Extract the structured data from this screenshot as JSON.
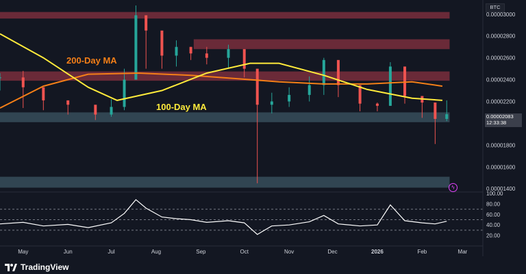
{
  "symbol": "BTC",
  "current_price": "0.00002083",
  "countdown": "12:33:38",
  "branding": "TradingView",
  "colors": {
    "background": "#131722",
    "candle_up": "#26a69a",
    "candle_down": "#ef5350",
    "ma200": "#f57f17",
    "ma100": "#ffeb3b",
    "support_zone": "#4a6b7a",
    "resistance_zone": "#b23b4a",
    "rsi_line": "#ffffff"
  },
  "chart_data": [
    {
      "type": "candlestick",
      "title": "",
      "x_axis_labels": [
        "May",
        "Jun",
        "Jul",
        "Aug",
        "Sep",
        "Oct",
        "Nov",
        "Dec",
        "2026",
        "Feb",
        "Mar"
      ],
      "y_axis_labels": [
        "0.00003000",
        "0.00002800",
        "0.00002600",
        "0.00002400",
        "0.00002200",
        "0.00002000",
        "0.00001800",
        "0.00001600",
        "0.00001400"
      ],
      "ylim": [
        1.37e-05,
        3.13e-05
      ],
      "grid": false,
      "annotations": [
        {
          "text": "200-Day MA",
          "color": "#f57f17"
        },
        {
          "text": "100-Day MA",
          "color": "#ffeb3b"
        }
      ],
      "zones": [
        {
          "kind": "support",
          "low": 2.01e-05,
          "high": 2.1e-05,
          "start": "2025-04-15",
          "end": "2026-02-20"
        },
        {
          "kind": "support",
          "low": 1.41e-05,
          "high": 1.51e-05,
          "start": "2025-04-15",
          "end": "2026-02-20"
        },
        {
          "kind": "resistance",
          "low": 2.39e-05,
          "high": 2.475e-05,
          "start": "2025-04-15",
          "end": "2026-02-20"
        },
        {
          "kind": "resistance",
          "low": 2.96e-05,
          "high": 3.02e-05,
          "start": "2025-04-15",
          "end": "2026-02-20"
        },
        {
          "kind": "resistance",
          "low": 2.68e-05,
          "high": 2.77e-05,
          "start": "2025-08-27",
          "end": "2026-02-20"
        }
      ],
      "series": [
        {
          "name": "200-Day MA",
          "type": "line",
          "x": [
            "2025-04-15",
            "2025-05-15",
            "2025-06-15",
            "2025-07-20",
            "2025-08-25",
            "2025-09-25",
            "2025-10-25",
            "2025-11-25",
            "2025-12-25",
            "2026-01-25",
            "2026-02-15"
          ],
          "values": [
            2.14e-05,
            2.34e-05,
            2.45e-05,
            2.46e-05,
            2.44e-05,
            2.41e-05,
            2.38e-05,
            2.36e-05,
            2.36e-05,
            2.38e-05,
            2.34e-05
          ]
        },
        {
          "name": "100-Day MA",
          "type": "line",
          "x": [
            "2025-04-15",
            "2025-05-15",
            "2025-06-15",
            "2025-07-05",
            "2025-08-05",
            "2025-09-05",
            "2025-10-05",
            "2025-10-25",
            "2025-11-25",
            "2025-12-25",
            "2026-01-25",
            "2026-02-15"
          ],
          "values": [
            2.82e-05,
            2.6e-05,
            2.33e-05,
            2.21e-05,
            2.3e-05,
            2.46e-05,
            2.55e-05,
            2.55e-05,
            2.44e-05,
            2.31e-05,
            2.23e-05,
            2.21e-05
          ]
        },
        {
          "name": "BTC",
          "type": "candles",
          "x": [
            "2025-04-15",
            "2025-05-01",
            "2025-05-15",
            "2025-06-01",
            "2025-06-20",
            "2025-07-01",
            "2025-07-10",
            "2025-07-18",
            "2025-07-25",
            "2025-08-05",
            "2025-08-15",
            "2025-08-25",
            "2025-09-05",
            "2025-09-20",
            "2025-10-01",
            "2025-10-10",
            "2025-10-20",
            "2025-11-01",
            "2025-11-15",
            "2025-11-25",
            "2025-12-05",
            "2025-12-20",
            "2026-01-01",
            "2026-01-10",
            "2026-01-20",
            "2026-02-01",
            "2026-02-10",
            "2026-02-18"
          ],
          "close": [
            2.42e-05,
            2.33e-05,
            2.21e-05,
            2.17e-05,
            2.08e-05,
            2.15e-05,
            2.4e-05,
            2.99e-05,
            2.85e-05,
            2.62e-05,
            2.7e-05,
            2.64e-05,
            2.6e-05,
            2.68e-05,
            2.5e-05,
            2.17e-05,
            2.2e-05,
            2.26e-05,
            2.35e-05,
            2.58e-05,
            2.35e-05,
            2.18e-05,
            2.16e-05,
            2.52e-05,
            2.25e-05,
            2.19e-05,
            2.04e-05,
            2.083e-05
          ],
          "high": [
            2.46e-05,
            2.48e-05,
            2.24e-05,
            2.2e-05,
            2.14e-05,
            2.22e-05,
            2.5e-05,
            3.08e-05,
            2.92e-05,
            2.7e-05,
            2.76e-05,
            2.7e-05,
            2.7e-05,
            2.72e-05,
            2.56e-05,
            2.42e-05,
            2.28e-05,
            2.33e-05,
            2.43e-05,
            2.6e-05,
            2.45e-05,
            2.25e-05,
            2.19e-05,
            2.56e-05,
            2.36e-05,
            2.25e-05,
            2.18e-05,
            2.21e-05
          ],
          "low": [
            2.3e-05,
            2.14e-05,
            2.12e-05,
            2.08e-05,
            2.03e-05,
            2.06e-05,
            2.12e-05,
            2.4e-05,
            2.5e-05,
            2.5e-05,
            2.52e-05,
            2.58e-05,
            2.54e-05,
            2.5e-05,
            2.42e-05,
            1.45e-05,
            2.09e-05,
            2.15e-05,
            2.2e-05,
            2.26e-05,
            2.24e-05,
            2.11e-05,
            2.11e-05,
            2.16e-05,
            2.18e-05,
            2.05e-05,
            1.81e-05,
            2.02e-05
          ]
        }
      ]
    },
    {
      "type": "line",
      "title": "",
      "y_axis_labels": [
        "100.00",
        "80.00",
        "60.00",
        "40.00",
        "20.00"
      ],
      "ylim": [
        0,
        100
      ],
      "reference_lines": [
        70,
        50,
        30
      ],
      "series": [
        {
          "name": "RSI",
          "x": [
            "2025-04-15",
            "2025-05-01",
            "2025-05-15",
            "2025-06-01",
            "2025-06-15",
            "2025-07-01",
            "2025-07-10",
            "2025-07-18",
            "2025-07-25",
            "2025-08-05",
            "2025-08-15",
            "2025-08-25",
            "2025-09-05",
            "2025-09-20",
            "2025-10-01",
            "2025-10-10",
            "2025-10-20",
            "2025-11-01",
            "2025-11-15",
            "2025-11-25",
            "2025-12-05",
            "2025-12-20",
            "2026-01-01",
            "2026-01-10",
            "2026-01-20",
            "2026-02-01",
            "2026-02-10",
            "2026-02-18"
          ],
          "values": [
            42,
            45,
            38,
            41,
            35,
            44,
            62,
            88,
            72,
            55,
            52,
            50,
            45,
            48,
            44,
            22,
            38,
            40,
            46,
            58,
            42,
            38,
            40,
            78,
            48,
            44,
            42,
            47
          ]
        }
      ]
    }
  ]
}
